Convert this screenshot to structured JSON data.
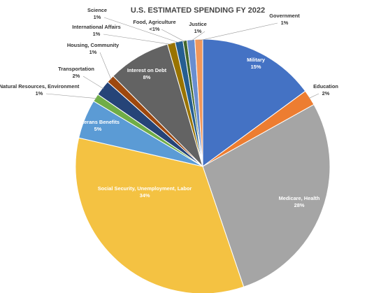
{
  "chart_data": {
    "type": "pie",
    "title": "U.S. ESTIMATED SPENDING FY 2022",
    "slices": [
      {
        "label": "Military",
        "pct": "15%",
        "value": 15,
        "color": "#4472c4"
      },
      {
        "label": "Education",
        "pct": "2%",
        "value": 2,
        "color": "#ed7d31"
      },
      {
        "label": "Medicare, Health",
        "pct": "28%",
        "value": 28,
        "color": "#a5a5a5"
      },
      {
        "label": "Social Security, Unemployment, Labor",
        "pct": "34%",
        "value": 34,
        "color": "#f4c242"
      },
      {
        "label": "Veterans Benefits",
        "pct": "5%",
        "value": 5,
        "color": "#5b9bd5"
      },
      {
        "label": "Natural Resources, Environment",
        "pct": "1%",
        "value": 1,
        "color": "#70ad47"
      },
      {
        "label": "Transportation",
        "pct": "2%",
        "value": 2,
        "color": "#264478"
      },
      {
        "label": "Housing, Community",
        "pct": "1%",
        "value": 1,
        "color": "#9e480e"
      },
      {
        "label": "Interest on Debt",
        "pct": "8%",
        "value": 8,
        "color": "#636363"
      },
      {
        "label": "International Affairs",
        "pct": "1%",
        "value": 1,
        "color": "#997300"
      },
      {
        "label": "Science",
        "pct": "1%",
        "value": 1,
        "color": "#255e91"
      },
      {
        "label": "Food, Agriculture",
        "pct": "<1%",
        "value": 0.5,
        "color": "#43682b"
      },
      {
        "label": "Justice",
        "pct": "1%",
        "value": 1,
        "color": "#698ed0"
      },
      {
        "label": "Government",
        "pct": "1%",
        "value": 1,
        "color": "#f1975a"
      }
    ]
  }
}
